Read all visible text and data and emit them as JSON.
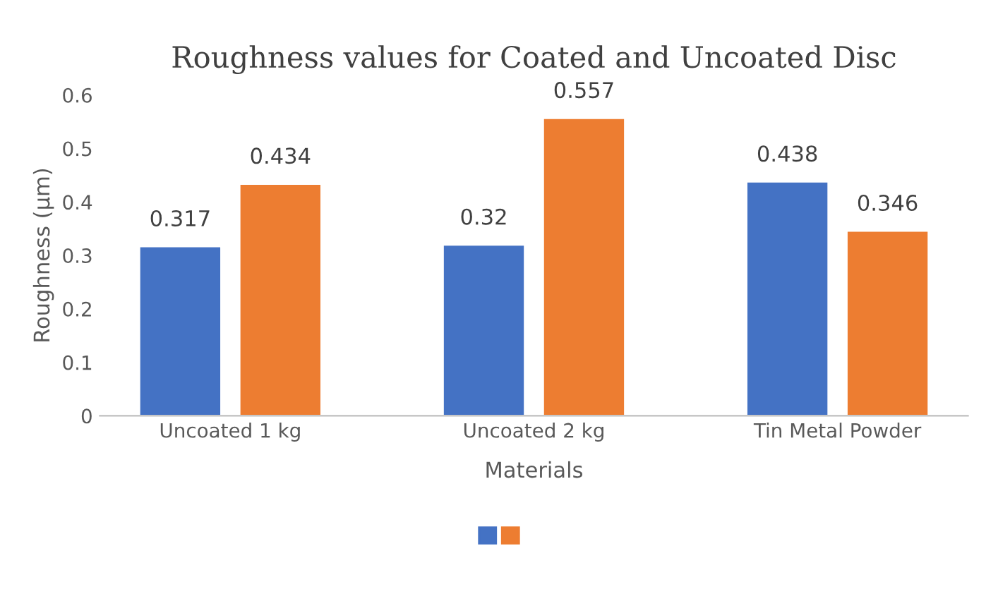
{
  "chart_data": {
    "type": "bar",
    "title": "Roughness values for Coated and Uncoated Disc",
    "xlabel": "Materials",
    "ylabel": "Roughness (µm)",
    "categories": [
      "Uncoated 1 kg",
      "Uncoated 2 kg",
      "Tin Metal Powder"
    ],
    "series": [
      {
        "color": "#4472c4",
        "values": [
          0.317,
          0.32,
          0.438
        ]
      },
      {
        "color": "#ed7d31",
        "values": [
          0.434,
          0.557,
          0.346
        ]
      }
    ],
    "ylim": [
      0,
      0.6
    ],
    "yticks": [
      0,
      0.1,
      0.2,
      0.3,
      0.4,
      0.5,
      0.6
    ],
    "data_labels": true
  }
}
